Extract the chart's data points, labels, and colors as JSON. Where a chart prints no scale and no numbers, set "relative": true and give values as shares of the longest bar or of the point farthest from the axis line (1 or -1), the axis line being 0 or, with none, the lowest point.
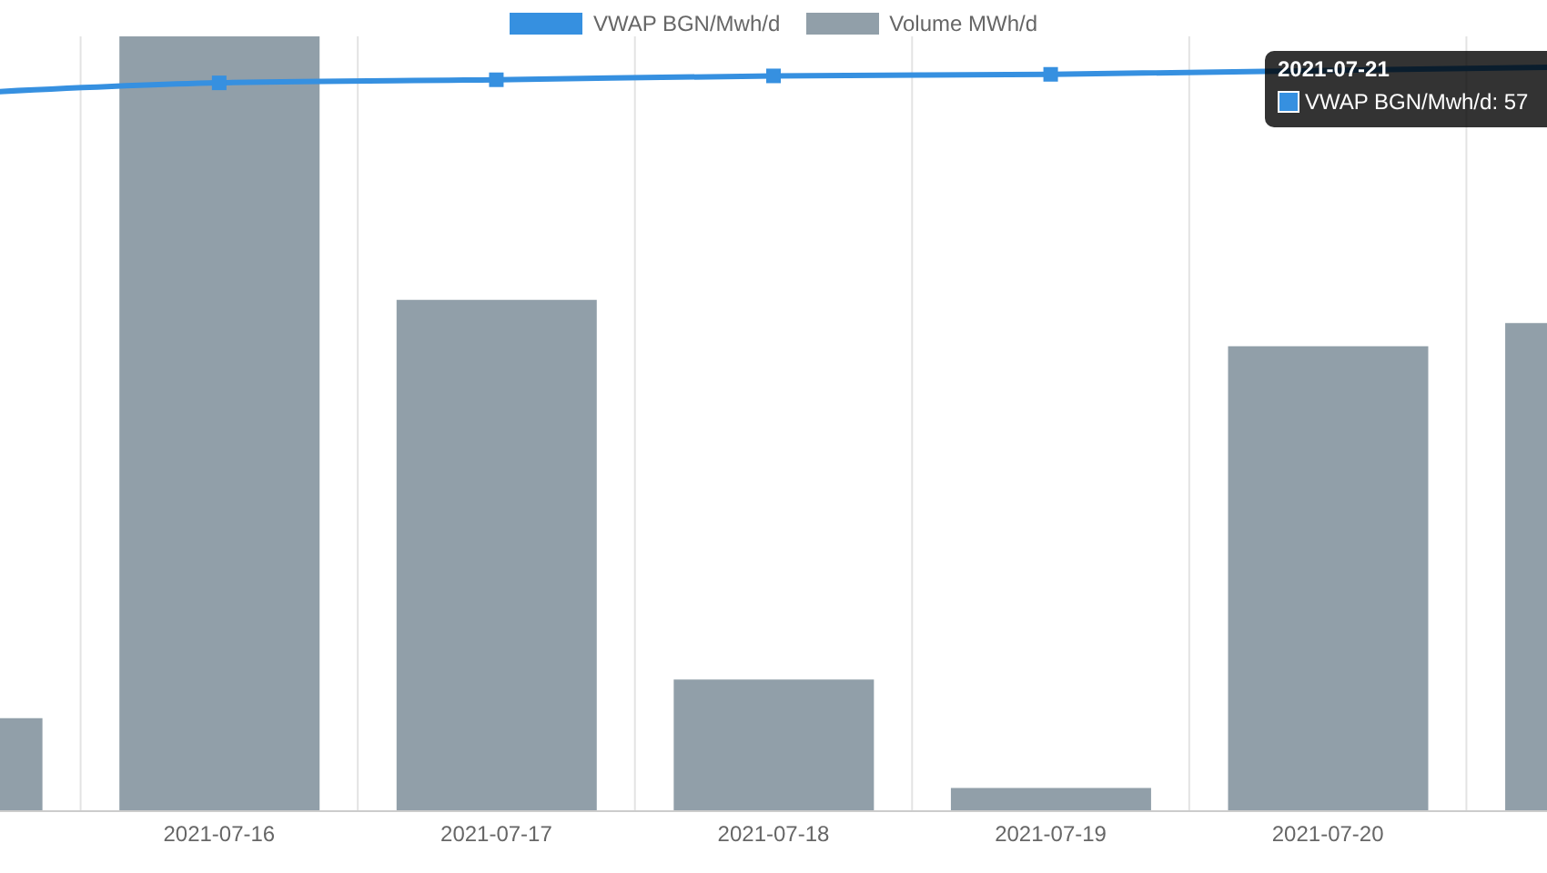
{
  "chart_data": {
    "type": "bar",
    "relative": true,
    "categories": [
      null,
      "2021-07-16",
      "2021-07-17",
      "2021-07-18",
      "2021-07-19",
      "2021-07-20",
      null
    ],
    "series": [
      {
        "name": "VWAP BGN/Mwh/d",
        "type": "line",
        "color": "#3690e0",
        "values": [
          0.925,
          0.94,
          0.944,
          0.949,
          0.951,
          null,
          0.961
        ]
      },
      {
        "name": "Volume MWh/d",
        "color": "#919fa9",
        "values": [
          0.12,
          1,
          0.66,
          0.17,
          0.03,
          0.6,
          0.63
        ]
      }
    ],
    "grid": "x",
    "legend": "top",
    "marker": "square",
    "annotations": [
      "2021-07-21",
      "VWAP BGN/Mwh/d: 57"
    ]
  }
}
